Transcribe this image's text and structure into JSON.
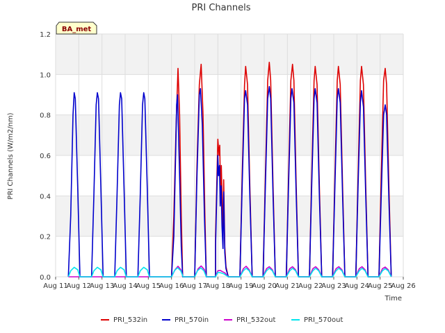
{
  "chart_data": {
    "type": "line",
    "title": "PRI Channels",
    "xlabel": "Time",
    "ylabel": "PRI Channels (W/m2/nm)",
    "badge": "BA_met",
    "x_ticks": [
      "Aug 11",
      "Aug 12",
      "Aug 13",
      "Aug 14",
      "Aug 15",
      "Aug 16",
      "Aug 17",
      "Aug 18",
      "Aug 19",
      "Aug 20",
      "Aug 21",
      "Aug 22",
      "Aug 23",
      "Aug 24",
      "Aug 25",
      "Aug 26"
    ],
    "xlim": [
      11,
      26
    ],
    "ylim": [
      0.0,
      1.2
    ],
    "y_ticks": [
      "0.0",
      "0.2",
      "0.4",
      "0.6",
      "0.8",
      "1.0",
      "1.2"
    ],
    "y_tick_values": [
      0.0,
      0.2,
      0.4,
      0.6,
      0.8,
      1.0,
      1.2
    ],
    "grid": true,
    "legend_position": "bottom",
    "series": [
      {
        "name": "PRI_532in",
        "color": "#dd0000",
        "points": [
          [
            16.0,
            0.0
          ],
          [
            16.1,
            0.3
          ],
          [
            16.2,
            0.75
          ],
          [
            16.28,
            1.03
          ],
          [
            16.35,
            0.8
          ],
          [
            16.42,
            0.3
          ],
          [
            16.48,
            0.0
          ],
          [
            17.0,
            0.0
          ],
          [
            17.1,
            0.55
          ],
          [
            17.2,
            0.95
          ],
          [
            17.28,
            1.05
          ],
          [
            17.36,
            0.8
          ],
          [
            17.44,
            0.3
          ],
          [
            17.5,
            0.0
          ],
          [
            17.9,
            0.0
          ],
          [
            17.9,
            0.2
          ],
          [
            17.95,
            0.45
          ],
          [
            18.0,
            0.68
          ],
          [
            18.05,
            0.6
          ],
          [
            18.08,
            0.65
          ],
          [
            18.12,
            0.4
          ],
          [
            18.15,
            0.55
          ],
          [
            18.2,
            0.3
          ],
          [
            18.22,
            0.2
          ],
          [
            18.25,
            0.48
          ],
          [
            18.3,
            0.15
          ],
          [
            18.35,
            0.05
          ],
          [
            18.45,
            0.0
          ],
          [
            18.95,
            0.0
          ],
          [
            19.05,
            0.5
          ],
          [
            19.15,
            0.95
          ],
          [
            19.2,
            1.04
          ],
          [
            19.28,
            0.95
          ],
          [
            19.38,
            0.45
          ],
          [
            19.48,
            0.0
          ],
          [
            19.95,
            0.0
          ],
          [
            20.05,
            0.5
          ],
          [
            20.15,
            0.97
          ],
          [
            20.22,
            1.06
          ],
          [
            20.28,
            0.97
          ],
          [
            20.38,
            0.45
          ],
          [
            20.48,
            0.0
          ],
          [
            20.95,
            0.0
          ],
          [
            21.05,
            0.5
          ],
          [
            21.15,
            0.97
          ],
          [
            21.22,
            1.05
          ],
          [
            21.28,
            0.97
          ],
          [
            21.38,
            0.45
          ],
          [
            21.48,
            0.0
          ],
          [
            21.95,
            0.0
          ],
          [
            22.05,
            0.5
          ],
          [
            22.15,
            0.97
          ],
          [
            22.2,
            1.04
          ],
          [
            22.28,
            0.95
          ],
          [
            22.38,
            0.45
          ],
          [
            22.48,
            0.0
          ],
          [
            22.95,
            0.0
          ],
          [
            23.05,
            0.5
          ],
          [
            23.15,
            0.97
          ],
          [
            23.2,
            1.04
          ],
          [
            23.28,
            0.95
          ],
          [
            23.38,
            0.45
          ],
          [
            23.48,
            0.0
          ],
          [
            23.95,
            0.0
          ],
          [
            24.05,
            0.5
          ],
          [
            24.15,
            0.97
          ],
          [
            24.2,
            1.04
          ],
          [
            24.28,
            0.95
          ],
          [
            24.38,
            0.45
          ],
          [
            24.48,
            0.0
          ],
          [
            24.95,
            0.0
          ],
          [
            25.05,
            0.5
          ],
          [
            25.15,
            0.97
          ],
          [
            25.22,
            1.03
          ],
          [
            25.28,
            0.95
          ],
          [
            25.38,
            0.45
          ],
          [
            25.48,
            0.0
          ]
        ]
      },
      {
        "name": "PRI_570in",
        "color": "#0000cc",
        "points": [
          [
            11.55,
            0.0
          ],
          [
            11.65,
            0.3
          ],
          [
            11.75,
            0.8
          ],
          [
            11.8,
            0.91
          ],
          [
            11.85,
            0.88
          ],
          [
            11.95,
            0.45
          ],
          [
            12.05,
            0.0
          ],
          [
            12.55,
            0.0
          ],
          [
            12.65,
            0.4
          ],
          [
            12.75,
            0.85
          ],
          [
            12.8,
            0.91
          ],
          [
            12.85,
            0.88
          ],
          [
            12.95,
            0.45
          ],
          [
            13.05,
            0.0
          ],
          [
            13.55,
            0.0
          ],
          [
            13.65,
            0.4
          ],
          [
            13.75,
            0.85
          ],
          [
            13.8,
            0.91
          ],
          [
            13.85,
            0.88
          ],
          [
            13.95,
            0.45
          ],
          [
            14.05,
            0.0
          ],
          [
            14.55,
            0.0
          ],
          [
            14.65,
            0.4
          ],
          [
            14.75,
            0.85
          ],
          [
            14.8,
            0.91
          ],
          [
            14.85,
            0.88
          ],
          [
            14.95,
            0.45
          ],
          [
            15.05,
            0.0
          ],
          [
            16.0,
            0.0
          ],
          [
            16.1,
            0.2
          ],
          [
            16.18,
            0.62
          ],
          [
            16.22,
            0.85
          ],
          [
            16.26,
            0.9
          ],
          [
            16.3,
            0.72
          ],
          [
            16.35,
            0.5
          ],
          [
            16.42,
            0.15
          ],
          [
            16.48,
            0.0
          ],
          [
            17.0,
            0.0
          ],
          [
            17.1,
            0.5
          ],
          [
            17.2,
            0.9
          ],
          [
            17.25,
            0.93
          ],
          [
            17.33,
            0.75
          ],
          [
            17.42,
            0.3
          ],
          [
            17.5,
            0.0
          ],
          [
            17.9,
            0.0
          ],
          [
            17.9,
            0.15
          ],
          [
            17.95,
            0.4
          ],
          [
            18.0,
            0.6
          ],
          [
            18.03,
            0.5
          ],
          [
            18.07,
            0.55
          ],
          [
            18.1,
            0.35
          ],
          [
            18.14,
            0.45
          ],
          [
            18.18,
            0.25
          ],
          [
            18.22,
            0.14
          ],
          [
            18.25,
            0.42
          ],
          [
            18.3,
            0.12
          ],
          [
            18.35,
            0.04
          ],
          [
            18.45,
            0.0
          ],
          [
            18.95,
            0.0
          ],
          [
            19.05,
            0.45
          ],
          [
            19.15,
            0.88
          ],
          [
            19.2,
            0.92
          ],
          [
            19.28,
            0.85
          ],
          [
            19.38,
            0.4
          ],
          [
            19.48,
            0.0
          ],
          [
            19.95,
            0.0
          ],
          [
            20.05,
            0.45
          ],
          [
            20.15,
            0.88
          ],
          [
            20.22,
            0.94
          ],
          [
            20.28,
            0.88
          ],
          [
            20.38,
            0.4
          ],
          [
            20.48,
            0.0
          ],
          [
            20.95,
            0.0
          ],
          [
            21.05,
            0.45
          ],
          [
            21.15,
            0.88
          ],
          [
            21.2,
            0.93
          ],
          [
            21.28,
            0.86
          ],
          [
            21.38,
            0.4
          ],
          [
            21.48,
            0.0
          ],
          [
            21.95,
            0.0
          ],
          [
            22.05,
            0.45
          ],
          [
            22.15,
            0.88
          ],
          [
            22.2,
            0.93
          ],
          [
            22.28,
            0.86
          ],
          [
            22.38,
            0.4
          ],
          [
            22.48,
            0.0
          ],
          [
            22.95,
            0.0
          ],
          [
            23.05,
            0.45
          ],
          [
            23.15,
            0.88
          ],
          [
            23.2,
            0.93
          ],
          [
            23.28,
            0.86
          ],
          [
            23.38,
            0.4
          ],
          [
            23.48,
            0.0
          ],
          [
            23.95,
            0.0
          ],
          [
            24.05,
            0.45
          ],
          [
            24.15,
            0.86
          ],
          [
            24.2,
            0.92
          ],
          [
            24.28,
            0.84
          ],
          [
            24.38,
            0.4
          ],
          [
            24.48,
            0.0
          ],
          [
            24.95,
            0.0
          ],
          [
            25.05,
            0.4
          ],
          [
            25.15,
            0.8
          ],
          [
            25.22,
            0.85
          ],
          [
            25.28,
            0.8
          ],
          [
            25.38,
            0.38
          ],
          [
            25.48,
            0.0
          ]
        ]
      },
      {
        "name": "PRI_532out",
        "color": "#cc00cc",
        "points": [
          [
            11.55,
            0.0
          ],
          [
            15.95,
            0.0
          ],
          [
            16.0,
            0.0
          ],
          [
            16.15,
            0.035
          ],
          [
            16.28,
            0.052
          ],
          [
            16.4,
            0.035
          ],
          [
            16.5,
            0.0
          ],
          [
            17.0,
            0.0
          ],
          [
            17.15,
            0.04
          ],
          [
            17.28,
            0.054
          ],
          [
            17.42,
            0.035
          ],
          [
            17.5,
            0.0
          ],
          [
            17.9,
            0.0
          ],
          [
            18.0,
            0.03
          ],
          [
            18.1,
            0.032
          ],
          [
            18.2,
            0.025
          ],
          [
            18.3,
            0.02
          ],
          [
            18.45,
            0.0
          ],
          [
            18.95,
            0.0
          ],
          [
            19.1,
            0.04
          ],
          [
            19.22,
            0.052
          ],
          [
            19.35,
            0.035
          ],
          [
            19.48,
            0.0
          ],
          [
            19.95,
            0.0
          ],
          [
            20.1,
            0.04
          ],
          [
            20.22,
            0.05
          ],
          [
            20.35,
            0.035
          ],
          [
            20.48,
            0.0
          ],
          [
            20.95,
            0.0
          ],
          [
            21.1,
            0.04
          ],
          [
            21.22,
            0.05
          ],
          [
            21.35,
            0.035
          ],
          [
            21.48,
            0.0
          ],
          [
            21.95,
            0.0
          ],
          [
            22.1,
            0.04
          ],
          [
            22.22,
            0.05
          ],
          [
            22.35,
            0.035
          ],
          [
            22.48,
            0.0
          ],
          [
            22.95,
            0.0
          ],
          [
            23.1,
            0.04
          ],
          [
            23.22,
            0.05
          ],
          [
            23.35,
            0.035
          ],
          [
            23.48,
            0.0
          ],
          [
            23.95,
            0.0
          ],
          [
            24.1,
            0.04
          ],
          [
            24.22,
            0.05
          ],
          [
            24.35,
            0.035
          ],
          [
            24.48,
            0.0
          ],
          [
            24.95,
            0.0
          ],
          [
            25.1,
            0.04
          ],
          [
            25.22,
            0.048
          ],
          [
            25.35,
            0.035
          ],
          [
            25.48,
            0.0
          ]
        ]
      },
      {
        "name": "PRI_570out",
        "color": "#00e5ee",
        "points": [
          [
            11.55,
            0.0
          ],
          [
            11.65,
            0.03
          ],
          [
            11.8,
            0.047
          ],
          [
            11.95,
            0.035
          ],
          [
            12.05,
            0.0
          ],
          [
            12.55,
            0.0
          ],
          [
            12.65,
            0.03
          ],
          [
            12.8,
            0.047
          ],
          [
            12.95,
            0.035
          ],
          [
            13.05,
            0.0
          ],
          [
            13.55,
            0.0
          ],
          [
            13.65,
            0.03
          ],
          [
            13.8,
            0.047
          ],
          [
            13.95,
            0.035
          ],
          [
            14.05,
            0.0
          ],
          [
            14.55,
            0.0
          ],
          [
            14.65,
            0.03
          ],
          [
            14.8,
            0.047
          ],
          [
            14.95,
            0.035
          ],
          [
            15.05,
            0.0
          ],
          [
            16.0,
            0.0
          ],
          [
            16.12,
            0.03
          ],
          [
            16.26,
            0.045
          ],
          [
            16.4,
            0.03
          ],
          [
            16.5,
            0.0
          ],
          [
            17.0,
            0.0
          ],
          [
            17.12,
            0.03
          ],
          [
            17.26,
            0.044
          ],
          [
            17.4,
            0.03
          ],
          [
            17.5,
            0.0
          ],
          [
            17.9,
            0.0
          ],
          [
            18.0,
            0.022
          ],
          [
            18.12,
            0.02
          ],
          [
            18.25,
            0.015
          ],
          [
            18.45,
            0.0
          ],
          [
            18.95,
            0.0
          ],
          [
            19.1,
            0.03
          ],
          [
            19.22,
            0.042
          ],
          [
            19.35,
            0.03
          ],
          [
            19.48,
            0.0
          ],
          [
            19.95,
            0.0
          ],
          [
            20.1,
            0.03
          ],
          [
            20.22,
            0.042
          ],
          [
            20.35,
            0.03
          ],
          [
            20.48,
            0.0
          ],
          [
            20.95,
            0.0
          ],
          [
            21.1,
            0.03
          ],
          [
            21.22,
            0.042
          ],
          [
            21.35,
            0.03
          ],
          [
            21.48,
            0.0
          ],
          [
            21.95,
            0.0
          ],
          [
            22.1,
            0.03
          ],
          [
            22.22,
            0.042
          ],
          [
            22.35,
            0.03
          ],
          [
            22.48,
            0.0
          ],
          [
            22.95,
            0.0
          ],
          [
            23.1,
            0.03
          ],
          [
            23.22,
            0.042
          ],
          [
            23.35,
            0.03
          ],
          [
            23.48,
            0.0
          ],
          [
            23.95,
            0.0
          ],
          [
            24.1,
            0.03
          ],
          [
            24.22,
            0.042
          ],
          [
            24.35,
            0.03
          ],
          [
            24.48,
            0.0
          ],
          [
            24.95,
            0.0
          ],
          [
            25.1,
            0.03
          ],
          [
            25.22,
            0.04
          ],
          [
            25.35,
            0.03
          ],
          [
            25.48,
            0.0
          ]
        ]
      }
    ]
  }
}
